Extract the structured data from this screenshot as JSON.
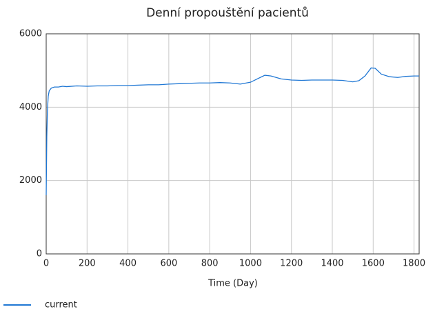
{
  "chart_data": {
    "type": "line",
    "title": "Denní propouštění pacientů",
    "x_label": "Time (Day)",
    "x": [
      0,
      3,
      6,
      10,
      15,
      25,
      40,
      60,
      80,
      100,
      150,
      200,
      250,
      300,
      350,
      400,
      450,
      500,
      550,
      600,
      650,
      700,
      750,
      800,
      850,
      900,
      950,
      1000,
      1040,
      1070,
      1100,
      1150,
      1200,
      1250,
      1300,
      1350,
      1400,
      1450,
      1500,
      1530,
      1560,
      1590,
      1610,
      1640,
      1680,
      1720,
      1760,
      1800,
      1825
    ],
    "series": [
      {
        "name": "current",
        "color": "#1f77d4",
        "values": [
          1600,
          3200,
          3900,
          4300,
          4450,
          4520,
          4550,
          4550,
          4570,
          4560,
          4580,
          4570,
          4580,
          4580,
          4590,
          4590,
          4600,
          4610,
          4610,
          4630,
          4640,
          4650,
          4660,
          4660,
          4670,
          4660,
          4630,
          4680,
          4790,
          4870,
          4850,
          4770,
          4740,
          4730,
          4740,
          4740,
          4740,
          4730,
          4690,
          4720,
          4850,
          5070,
          5060,
          4900,
          4830,
          4810,
          4840,
          4850,
          4850
        ]
      }
    ],
    "xlim": [
      0,
      1825
    ],
    "xticks": [
      0,
      200,
      400,
      600,
      800,
      1000,
      1200,
      1400,
      1600,
      1800
    ],
    "ylim": [
      0,
      6000
    ],
    "yticks": [
      0,
      2000,
      4000,
      6000
    ],
    "grid": true
  }
}
